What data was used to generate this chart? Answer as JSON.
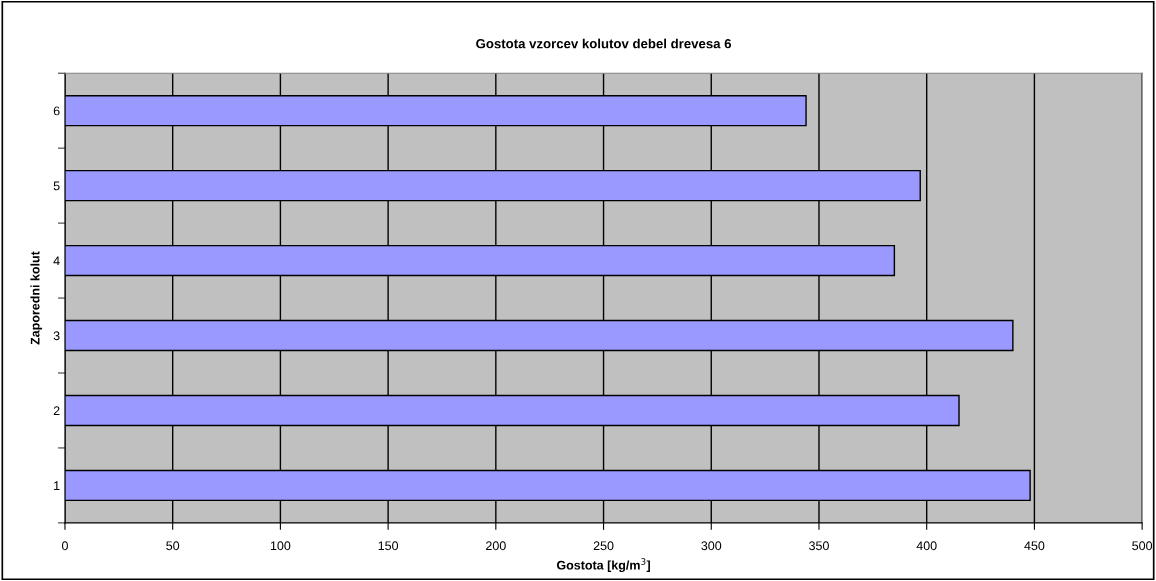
{
  "chart_data": {
    "type": "bar",
    "orientation": "horizontal",
    "title": "Gostota vzorcev kolutov debel drevesa 6",
    "xlabel": "Gostota [kg/m$^{3}$]",
    "ylabel": "Zaporedni kolut",
    "categories": [
      "6",
      "5",
      "4",
      "3",
      "2",
      "1"
    ],
    "values": [
      344,
      397,
      385,
      440,
      415,
      448
    ],
    "color": "#9999ff",
    "xlim": [
      0,
      500
    ],
    "xticks": [
      0,
      50,
      100,
      150,
      200,
      250,
      300,
      350,
      400,
      450,
      500
    ],
    "grid": "x",
    "legend": false
  }
}
